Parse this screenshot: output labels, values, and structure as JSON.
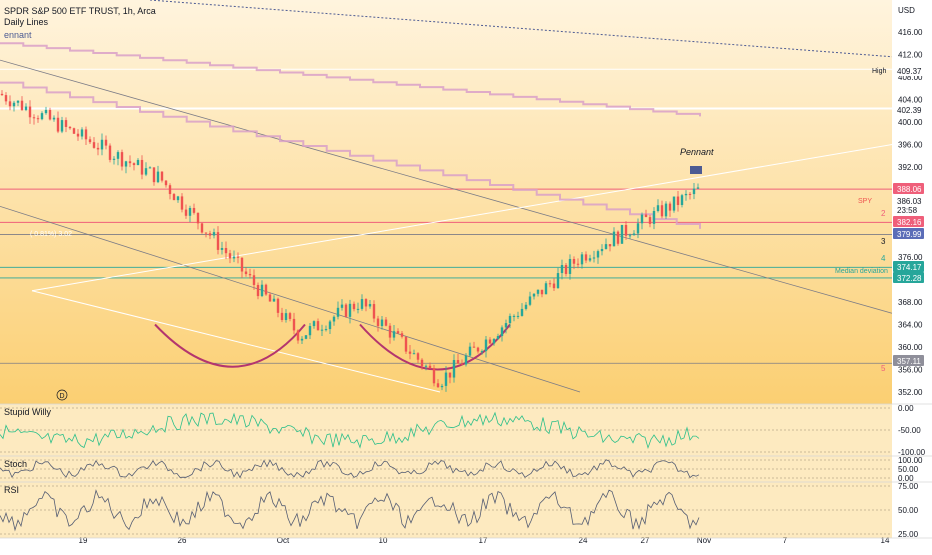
{
  "header": {
    "symbol_line": "SPDR S&P 500 ETF TRUST, 1h, Arca",
    "indicator": "Daily Lines",
    "currency": "USD",
    "pennant_left": "ennant"
  },
  "colors": {
    "bg_top": "#ffefd2",
    "bg_bottom": "#fbce6b",
    "pane_bg": "#fbd98c",
    "up": "#26a69a",
    "down": "#ef5350",
    "red_line": "#ef5f7a",
    "pink_line": "#d9a0c8",
    "grey_line": "#7c7c86",
    "navy": "#4d5b93"
  },
  "main": {
    "annotations": {
      "pennant": "Pennant",
      "median_deviation": "Median deviation",
      "spy": "SPY",
      "high": "High",
      "left_note": "( 0.81%) 3.02",
      "circle_label": "D",
      "level_2": "2",
      "level_3": "3",
      "level_4": "4",
      "level_5": "5"
    },
    "price_labels": [
      {
        "value": "409.37",
        "kind": "white"
      },
      {
        "value": "402.39",
        "kind": "white"
      },
      {
        "value": "388.06",
        "kind": "red"
      },
      {
        "value": "386.03",
        "kind": "white"
      },
      {
        "value": "23:58",
        "kind": "plain"
      },
      {
        "value": "382.16",
        "kind": "red"
      },
      {
        "value": "379.99",
        "kind": "blue"
      },
      {
        "value": "374.17",
        "kind": "green"
      },
      {
        "value": "372.28",
        "kind": "green"
      },
      {
        "value": "357.11",
        "kind": "grey"
      }
    ]
  },
  "chart_data": [
    {
      "type": "candlestick",
      "title": "SPDR S&P 500 ETF TRUST, 1h, Arca",
      "xlabel": "",
      "ylabel": "",
      "ylim": [
        350,
        420
      ],
      "y_ticks": [
        "416.00",
        "412.00",
        "408.00",
        "404.00",
        "400.00",
        "396.00",
        "392.00",
        "376.00",
        "368.00",
        "364.00",
        "360.00",
        "356.00",
        "352.00"
      ],
      "x_ticks": [
        "19",
        "26",
        "Oct",
        "10",
        "17",
        "24",
        "27",
        "Nov",
        "7",
        "14"
      ],
      "trend_segments": [
        {
          "x": [
            "19",
            "26",
            "Oct",
            "10",
            "17",
            "24",
            "27",
            "Nov"
          ],
          "values": [
            405,
            390,
            362,
            368,
            354,
            376,
            382,
            388
          ]
        }
      ]
    },
    {
      "type": "line",
      "title": "Stupid Willy",
      "ylim": [
        -100,
        0
      ],
      "y_ticks": [
        "0.00",
        "-50.00",
        "-100.00"
      ]
    },
    {
      "type": "line",
      "title": "Stoch",
      "ylim": [
        0,
        100
      ],
      "y_ticks": [
        "100.00",
        "50.00",
        "0.00"
      ]
    },
    {
      "type": "line",
      "title": "RSI",
      "ylim": [
        25,
        75
      ],
      "y_ticks": [
        "75.00",
        "50.00",
        "25.00"
      ]
    }
  ]
}
